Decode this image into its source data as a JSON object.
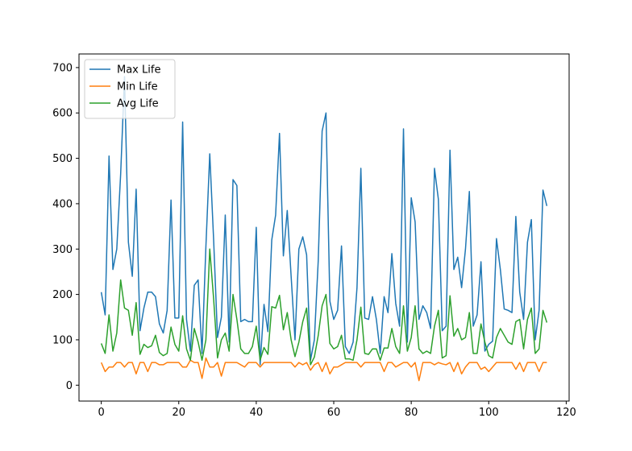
{
  "chart_data": {
    "type": "line",
    "title": "",
    "xlabel": "",
    "ylabel": "",
    "xlim": [
      -5.75,
      120.75
    ],
    "ylim": [
      -35,
      730
    ],
    "xticks": [
      0,
      20,
      40,
      60,
      80,
      100,
      120
    ],
    "yticks": [
      0,
      100,
      200,
      300,
      400,
      500,
      600,
      700
    ],
    "grid": false,
    "legend_position": "top-left",
    "x": [
      0,
      1,
      2,
      3,
      4,
      5,
      6,
      7,
      8,
      9,
      10,
      11,
      12,
      13,
      14,
      15,
      16,
      17,
      18,
      19,
      20,
      21,
      22,
      23,
      24,
      25,
      26,
      27,
      28,
      29,
      30,
      31,
      32,
      33,
      34,
      35,
      36,
      37,
      38,
      39,
      40,
      41,
      42,
      43,
      44,
      45,
      46,
      47,
      48,
      49,
      50,
      51,
      52,
      53,
      54,
      55,
      56,
      57,
      58,
      59,
      60,
      61,
      62,
      63,
      64,
      65,
      66,
      67,
      68,
      69,
      70,
      71,
      72,
      73,
      74,
      75,
      76,
      77,
      78,
      79,
      80,
      81,
      82,
      83,
      84,
      85,
      86,
      87,
      88,
      89,
      90,
      91,
      92,
      93,
      94,
      95,
      96,
      97,
      98,
      99,
      100,
      101,
      102,
      103,
      104,
      105,
      106,
      107,
      108,
      109,
      110,
      111,
      112,
      113,
      114,
      115
    ],
    "series": [
      {
        "name": "Max Life",
        "color": "#1f77b4",
        "values": [
          205,
          155,
          505,
          255,
          300,
          465,
          680,
          315,
          240,
          432,
          120,
          170,
          205,
          205,
          195,
          135,
          115,
          165,
          408,
          148,
          148,
          580,
          145,
          75,
          220,
          232,
          70,
          305,
          510,
          320,
          105,
          150,
          375,
          95,
          453,
          440,
          140,
          145,
          140,
          140,
          348,
          45,
          178,
          118,
          320,
          375,
          555,
          285,
          385,
          240,
          100,
          300,
          327,
          287,
          55,
          100,
          275,
          560,
          600,
          185,
          145,
          165,
          307,
          85,
          70,
          95,
          215,
          478,
          148,
          145,
          195,
          145,
          70,
          195,
          160,
          290,
          180,
          130,
          565,
          95,
          413,
          360,
          145,
          175,
          160,
          125,
          478,
          410,
          120,
          130,
          518,
          255,
          282,
          215,
          300,
          427,
          130,
          155,
          272,
          75,
          90,
          97,
          323,
          255,
          168,
          165,
          160,
          372,
          205,
          145,
          315,
          365,
          100,
          165,
          430,
          395
        ]
      },
      {
        "name": "Min Life",
        "color": "#ff7f0e",
        "values": [
          50,
          30,
          40,
          40,
          50,
          50,
          40,
          50,
          50,
          25,
          50,
          50,
          30,
          50,
          50,
          45,
          45,
          50,
          50,
          50,
          50,
          40,
          40,
          55,
          50,
          50,
          15,
          60,
          40,
          40,
          50,
          20,
          50,
          50,
          50,
          50,
          45,
          40,
          50,
          50,
          50,
          40,
          50,
          50,
          50,
          50,
          50,
          50,
          50,
          50,
          40,
          50,
          45,
          50,
          33,
          45,
          50,
          30,
          50,
          25,
          40,
          40,
          45,
          50,
          50,
          50,
          50,
          40,
          50,
          50,
          50,
          50,
          50,
          30,
          50,
          50,
          40,
          45,
          50,
          50,
          40,
          50,
          10,
          50,
          50,
          50,
          45,
          50,
          47,
          45,
          50,
          30,
          50,
          25,
          40,
          50,
          50,
          50,
          35,
          40,
          30,
          40,
          50,
          50,
          50,
          50,
          50,
          35,
          50,
          30,
          50,
          50,
          50,
          30,
          50,
          50
        ]
      },
      {
        "name": "Avg Life",
        "color": "#2ca02c",
        "values": [
          92,
          70,
          155,
          75,
          115,
          232,
          170,
          165,
          110,
          182,
          68,
          90,
          83,
          87,
          110,
          72,
          65,
          70,
          128,
          90,
          75,
          153,
          80,
          55,
          125,
          95,
          55,
          100,
          300,
          190,
          60,
          100,
          115,
          75,
          200,
          145,
          80,
          70,
          70,
          85,
          130,
          55,
          83,
          68,
          173,
          170,
          198,
          122,
          160,
          100,
          63,
          95,
          140,
          170,
          45,
          62,
          110,
          175,
          200,
          92,
          80,
          85,
          110,
          58,
          58,
          55,
          100,
          172,
          70,
          68,
          80,
          80,
          55,
          82,
          82,
          125,
          85,
          70,
          175,
          75,
          105,
          175,
          80,
          70,
          75,
          70,
          130,
          165,
          60,
          65,
          197,
          108,
          125,
          100,
          105,
          160,
          70,
          70,
          135,
          95,
          65,
          60,
          105,
          125,
          110,
          95,
          90,
          140,
          145,
          80,
          145,
          170,
          70,
          80,
          165,
          138
        ]
      }
    ]
  }
}
